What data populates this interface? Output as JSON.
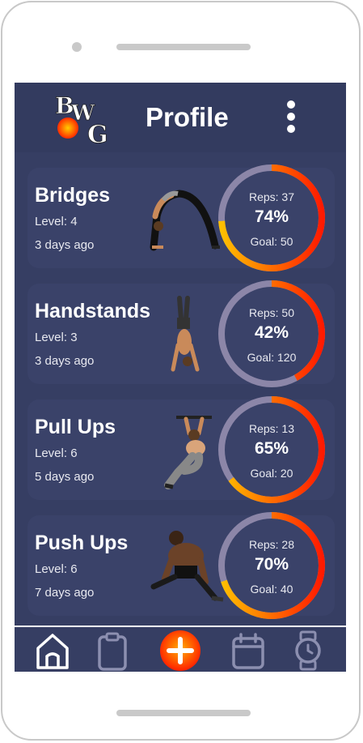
{
  "header": {
    "title": "Profile",
    "logo_text": "BWG"
  },
  "colors": {
    "background": "#363e63",
    "card": "#3a4269",
    "ring_track": "#8c86a8",
    "ring_start": "#ffc000",
    "ring_end": "#ff1a00"
  },
  "cards": [
    {
      "name": "Bridges",
      "level": "Level: 4",
      "date": "3 days ago",
      "reps": "Reps: 37",
      "percent": "74%",
      "progress": 0.74,
      "goal": "Goal: 50"
    },
    {
      "name": "Handstands",
      "level": "Level: 3",
      "date": "3 days ago",
      "reps": "Reps: 50",
      "percent": "42%",
      "progress": 0.42,
      "goal": "Goal: 120"
    },
    {
      "name": "Pull Ups",
      "level": "Level: 6",
      "date": "5 days ago",
      "reps": "Reps: 13",
      "percent": "65%",
      "progress": 0.65,
      "goal": "Goal: 20"
    },
    {
      "name": "Push Ups",
      "level": "Level: 6",
      "date": "7 days ago",
      "reps": "Reps: 28",
      "percent": "70%",
      "progress": 0.7,
      "goal": "Goal: 40"
    }
  ],
  "nav": [
    {
      "icon": "home-icon",
      "active": true
    },
    {
      "icon": "clipboard-icon",
      "active": false
    },
    {
      "icon": "add-icon",
      "active": false
    },
    {
      "icon": "calendar-icon",
      "active": false
    },
    {
      "icon": "watch-icon",
      "active": false
    }
  ]
}
